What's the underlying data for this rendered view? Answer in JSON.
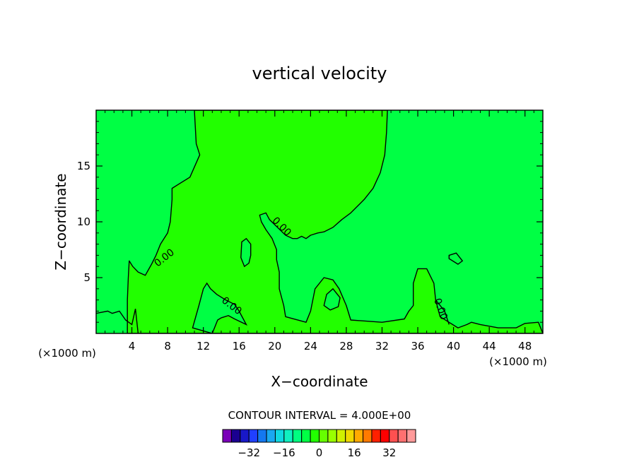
{
  "chart_data": {
    "type": "contour",
    "title": "vertical velocity",
    "xlabel": "X−coordinate",
    "ylabel": "Z−coordinate",
    "x_unit_left": "(×1000 m)",
    "x_unit_right": "(×1000 m)",
    "xlim": [
      0,
      50
    ],
    "ylim": [
      0,
      20
    ],
    "x_ticks": [
      4,
      8,
      12,
      16,
      20,
      24,
      28,
      32,
      36,
      40,
      44,
      48
    ],
    "x_tick_labels": [
      "4",
      "8",
      "12",
      "16",
      "20",
      "24",
      "28",
      "32",
      "36",
      "40",
      "44",
      "48"
    ],
    "y_ticks": [
      5,
      10,
      15
    ],
    "y_tick_labels": [
      "5",
      "10",
      "15"
    ],
    "contour_interval_text": "CONTOUR INTERVAL = 4.000E+00",
    "contour_line_labels": [
      "0.00",
      "0.00",
      "0.00",
      "0.00"
    ],
    "background_fill": "#00ff44",
    "positive_fill": "#22ff00",
    "colorbar": {
      "colors": [
        "#7a00b8",
        "#1a0090",
        "#1818c8",
        "#2040ff",
        "#1478f0",
        "#1aa8f0",
        "#10d8e0",
        "#10f0c0",
        "#00ff80",
        "#00ff44",
        "#22ff00",
        "#66ff00",
        "#99ff00",
        "#d0f000",
        "#f0d800",
        "#ffaa00",
        "#ff7a00",
        "#ff2000",
        "#ff0000",
        "#ff5050",
        "#ff7070",
        "#ff9a9a"
      ],
      "tick_values": [
        -32,
        -16,
        0,
        16,
        32
      ],
      "tick_labels": [
        "−32",
        "−16",
        "0",
        "16",
        "32"
      ],
      "range": [
        -44,
        44
      ]
    },
    "regions": {
      "plume": [
        [
          11,
          20
        ],
        [
          11.2,
          17
        ],
        [
          11.6,
          16
        ],
        [
          10.5,
          14
        ],
        [
          8.5,
          13
        ],
        [
          8.5,
          12
        ],
        [
          8.3,
          10
        ],
        [
          8,
          9
        ],
        [
          7.2,
          8
        ],
        [
          6.7,
          7
        ],
        [
          6.2,
          6.2
        ],
        [
          5.5,
          5.2
        ],
        [
          4.7,
          5.5
        ],
        [
          4.1,
          6
        ],
        [
          3.7,
          6.5
        ],
        [
          3.6,
          5
        ],
        [
          3.5,
          3
        ],
        [
          3.5,
          0
        ],
        [
          50,
          0
        ],
        [
          49.5,
          1
        ],
        [
          48,
          0.9
        ],
        [
          47,
          0.5
        ],
        [
          45,
          0.5
        ],
        [
          43,
          0.8
        ],
        [
          42,
          1
        ],
        [
          41.5,
          0.8
        ],
        [
          40.5,
          0.5
        ],
        [
          38.5,
          1.5
        ],
        [
          38,
          3
        ],
        [
          37.8,
          4.5
        ],
        [
          37,
          5.8
        ],
        [
          36,
          5.8
        ],
        [
          35.5,
          4.5
        ],
        [
          35.5,
          2.5
        ],
        [
          35,
          2
        ],
        [
          34.5,
          1.3
        ],
        [
          32,
          1
        ],
        [
          28.5,
          1.2
        ],
        [
          28,
          2.5
        ],
        [
          27.2,
          4
        ],
        [
          26.5,
          4.8
        ],
        [
          25.5,
          5
        ],
        [
          24.5,
          4
        ],
        [
          24,
          2
        ],
        [
          23.5,
          1
        ],
        [
          21.2,
          1.5
        ],
        [
          21,
          2.5
        ],
        [
          20.5,
          4
        ],
        [
          20.5,
          5.5
        ],
        [
          20.2,
          6.6
        ],
        [
          20.2,
          7.5
        ],
        [
          19.7,
          8.5
        ],
        [
          19,
          9.3
        ],
        [
          18.5,
          10
        ],
        [
          18.3,
          10.6
        ],
        [
          19,
          10.8
        ],
        [
          19.4,
          10.2
        ],
        [
          20.3,
          9.5
        ],
        [
          21.2,
          8.8
        ],
        [
          22,
          8.5
        ],
        [
          22.5,
          8.5
        ],
        [
          23,
          8.7
        ],
        [
          23.5,
          8.5
        ],
        [
          24,
          8.8
        ],
        [
          24.8,
          9
        ],
        [
          25.5,
          9.1
        ],
        [
          26.5,
          9.5
        ],
        [
          27.5,
          10.2
        ],
        [
          28.5,
          10.8
        ],
        [
          30,
          12
        ],
        [
          31,
          13
        ],
        [
          31.8,
          14.4
        ],
        [
          32.3,
          16
        ],
        [
          32.5,
          18
        ],
        [
          32.6,
          20
        ]
      ],
      "negative_cells": [
        [
          [
            16.3,
            8.2
          ],
          [
            16.8,
            8.5
          ],
          [
            17.3,
            8
          ],
          [
            17.3,
            7
          ],
          [
            17.1,
            6.3
          ],
          [
            16.6,
            6
          ],
          [
            16.2,
            6.8
          ]
        ],
        [
          [
            10.8,
            0.5
          ],
          [
            11.5,
            2.5
          ],
          [
            12,
            4
          ],
          [
            12.4,
            4.5
          ],
          [
            12.8,
            4
          ],
          [
            13.5,
            3.5
          ],
          [
            14.5,
            3
          ],
          [
            15.5,
            2.6
          ],
          [
            16,
            2
          ],
          [
            16.8,
            0.8
          ],
          [
            15.5,
            1.3
          ],
          [
            14.8,
            1.6
          ],
          [
            14,
            1.4
          ],
          [
            13.6,
            1.2
          ],
          [
            13,
            0
          ]
        ],
        [
          [
            25.5,
            2.5
          ],
          [
            25.8,
            3.5
          ],
          [
            26.5,
            4
          ],
          [
            27.3,
            3.2
          ],
          [
            27.1,
            2.4
          ],
          [
            26.2,
            2.1
          ]
        ],
        [
          [
            39.5,
            6.7
          ],
          [
            40.5,
            6.2
          ],
          [
            41,
            6.5
          ],
          [
            40.3,
            7.2
          ],
          [
            39.5,
            7
          ]
        ]
      ],
      "contour_lines": [
        [
          [
            4.7,
            0
          ],
          [
            4.4,
            2.2
          ],
          [
            4,
            0.8
          ],
          [
            3.3,
            1.2
          ],
          [
            2.6,
            2
          ],
          [
            1.8,
            1.8
          ],
          [
            1.3,
            2
          ],
          [
            0,
            1.8
          ]
        ],
        [
          [
            38,
            3
          ],
          [
            39,
            2
          ],
          [
            39.5,
            0.8
          ]
        ]
      ]
    }
  }
}
